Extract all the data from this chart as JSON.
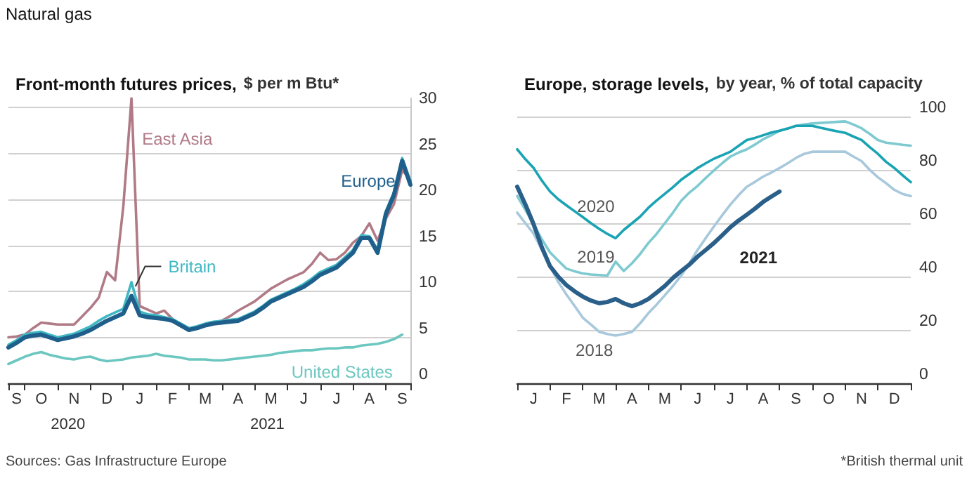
{
  "chart_data": [
    {
      "type": "line",
      "title": "Front-month futures prices,",
      "subtitle": "$ per m Btu*",
      "annotations": [
        "Natural gas",
        "Sources: Gas Infrastructure Europe",
        "2020",
        "2021"
      ],
      "categories": [
        null,
        "S",
        null,
        null,
        "O",
        null,
        null,
        null,
        "N",
        null,
        null,
        null,
        "D",
        null,
        null,
        null,
        "J",
        null,
        null,
        null,
        "F",
        null,
        null,
        null,
        "M",
        null,
        null,
        null,
        "A",
        null,
        null,
        null,
        "M",
        null,
        null,
        null,
        "J",
        null,
        null,
        null,
        "J",
        null,
        null,
        null,
        "A",
        null,
        null,
        null,
        "S",
        null
      ],
      "ylim": [
        0,
        31
      ],
      "yticks": [
        0,
        5,
        10,
        15,
        20,
        25,
        30
      ],
      "grid": "y",
      "legend": false,
      "marker": "none",
      "series": [
        {
          "name": "East Asia",
          "color": "#b07a86",
          "values": [
            5.0,
            5.1,
            5.3,
            6.0,
            6.6,
            6.5,
            6.4,
            6.4,
            6.4,
            7.3,
            8.2,
            9.3,
            12.1,
            11.2,
            19.2,
            31,
            8.4,
            8.0,
            7.6,
            7.9,
            7.0,
            6.2,
            5.8,
            6.1,
            6.4,
            6.6,
            6.8,
            7.3,
            7.9,
            8.4,
            8.9,
            9.6,
            10.3,
            10.8,
            11.3,
            11.7,
            12.1,
            13.0,
            14.2,
            13.4,
            13.5,
            14.2,
            15.3,
            16.0,
            17.4,
            15.5,
            17.9,
            19.5,
            23.2,
            22.1
          ]
        },
        {
          "name": "United States",
          "color": "#6cc7c0",
          "values": [
            2.1,
            2.5,
            2.9,
            3.2,
            3.4,
            3.1,
            2.9,
            2.7,
            2.6,
            2.8,
            2.9,
            2.6,
            2.4,
            2.5,
            2.6,
            2.8,
            2.9,
            3.0,
            3.2,
            3.0,
            2.9,
            2.8,
            2.6,
            2.6,
            2.6,
            2.5,
            2.5,
            2.6,
            2.7,
            2.8,
            2.9,
            3.0,
            3.1,
            3.3,
            3.4,
            3.5,
            3.6,
            3.6,
            3.7,
            3.8,
            3.8,
            3.9,
            3.9,
            4.1,
            4.2,
            4.3,
            4.5,
            4.8,
            5.3,
            null
          ]
        },
        {
          "name": "Britain",
          "color": "#3fb8c4",
          "values": [
            4.2,
            4.7,
            5.3,
            5.5,
            5.6,
            5.3,
            5.0,
            5.2,
            5.4,
            5.8,
            6.2,
            6.8,
            7.3,
            7.7,
            8.1,
            11.0,
            7.8,
            7.5,
            7.4,
            7.2,
            7.0,
            6.5,
            6.0,
            6.2,
            6.5,
            6.7,
            6.8,
            6.9,
            7.0,
            7.4,
            7.8,
            8.4,
            9.1,
            9.5,
            9.9,
            10.3,
            10.8,
            11.4,
            12.1,
            12.5,
            12.9,
            13.7,
            14.5,
            16.1,
            16.0,
            14.5,
            18.7,
            20.8,
            24.5,
            22.0
          ]
        },
        {
          "name": "Europe",
          "color": "#1f5f8b",
          "values": [
            3.9,
            4.4,
            5.0,
            5.2,
            5.3,
            5.0,
            4.7,
            4.9,
            5.1,
            5.4,
            5.8,
            6.3,
            6.8,
            7.2,
            7.6,
            9.5,
            7.4,
            7.2,
            7.1,
            7.0,
            6.8,
            6.3,
            5.8,
            6.0,
            6.3,
            6.5,
            6.6,
            6.7,
            6.8,
            7.2,
            7.6,
            8.2,
            8.9,
            9.3,
            9.7,
            10.1,
            10.5,
            11.1,
            11.8,
            12.2,
            12.6,
            13.4,
            14.2,
            15.8,
            15.8,
            14.2,
            18.4,
            20.5,
            24.2,
            21.6
          ]
        }
      ]
    },
    {
      "type": "line",
      "title": "Europe, storage levels,",
      "subtitle": "by year, % of total capacity",
      "annotations": [
        "*British thermal unit"
      ],
      "categories": [
        null,
        null,
        "J",
        null,
        null,
        null,
        "F",
        null,
        null,
        null,
        "M",
        null,
        null,
        null,
        "A",
        null,
        null,
        null,
        "M",
        null,
        null,
        null,
        "J",
        null,
        null,
        null,
        "J",
        null,
        null,
        null,
        "A",
        null,
        null,
        null,
        "S",
        null,
        null,
        null,
        "O",
        null,
        null,
        null,
        "N",
        null,
        null,
        null,
        "D",
        null,
        null
      ],
      "ylim": [
        0,
        100
      ],
      "yticks": [
        0,
        20,
        40,
        60,
        80,
        100
      ],
      "grid": "y",
      "legend": false,
      "marker": "none",
      "series": [
        {
          "name": "2018",
          "color": "#a8c8dc",
          "values": [
            64,
            60,
            56.1,
            50,
            43.9,
            38,
            33.3,
            29,
            24.6,
            22,
            19.3,
            18.5,
            17.9,
            18.5,
            19.3,
            22.5,
            26.3,
            29.5,
            33,
            36.5,
            40.4,
            45,
            50,
            54.5,
            58.8,
            63,
            67,
            70.5,
            73.7,
            75.5,
            77.5,
            79,
            80.7,
            82.5,
            84.5,
            86,
            86.8,
            86.8,
            86.8,
            86.8,
            86.8,
            85,
            83.3,
            80,
            77.2,
            75,
            72.5,
            71,
            70.2
          ]
        },
        {
          "name": "2019",
          "color": "#7fcad1",
          "values": [
            70.2,
            65,
            59.6,
            54,
            49.1,
            46,
            43,
            42,
            41.2,
            40.8,
            40.6,
            40.4,
            45.6,
            42.1,
            45,
            48.5,
            52.6,
            56,
            60,
            64,
            68.4,
            71.5,
            74,
            77,
            79.8,
            82.5,
            85,
            86.5,
            87.7,
            89.5,
            91.5,
            93,
            94.7,
            95.5,
            96.5,
            97,
            97.4,
            97.6,
            97.8,
            98,
            98.2,
            97,
            95.6,
            93.5,
            91.2,
            90.2,
            89.8,
            89.4,
            89.1
          ]
        },
        {
          "name": "2020",
          "color": "#1aa3b3",
          "values": [
            87.7,
            84,
            80.7,
            76,
            71.9,
            69,
            66.7,
            64.5,
            62.3,
            60,
            57.9,
            56,
            54.4,
            57.5,
            60,
            62.5,
            65.8,
            68.5,
            71,
            73.5,
            76.3,
            78.5,
            80.7,
            82.5,
            84.2,
            85.5,
            86.8,
            89,
            91.2,
            92,
            93,
            94,
            94.7,
            95.5,
            96.5,
            96.5,
            96.5,
            95.8,
            95.1,
            94.5,
            93.9,
            92.5,
            91.2,
            88.5,
            86,
            83,
            80.7,
            78,
            75.4
          ]
        },
        {
          "name": "2021",
          "color": "#2a5f8a",
          "values": [
            73.7,
            67,
            59.6,
            51,
            43.9,
            40,
            36.8,
            34.5,
            32.5,
            31,
            30,
            30.5,
            31.6,
            30,
            28.9,
            30,
            31.6,
            34,
            36.5,
            39.5,
            42.1,
            44.5,
            47.5,
            50,
            52.6,
            55.5,
            58.5,
            61,
            63.2,
            65.5,
            68,
            70,
            71.9,
            null,
            null,
            null,
            null,
            null,
            null,
            null,
            null,
            null,
            null,
            null,
            null,
            null,
            null,
            null,
            null
          ]
        }
      ]
    }
  ]
}
